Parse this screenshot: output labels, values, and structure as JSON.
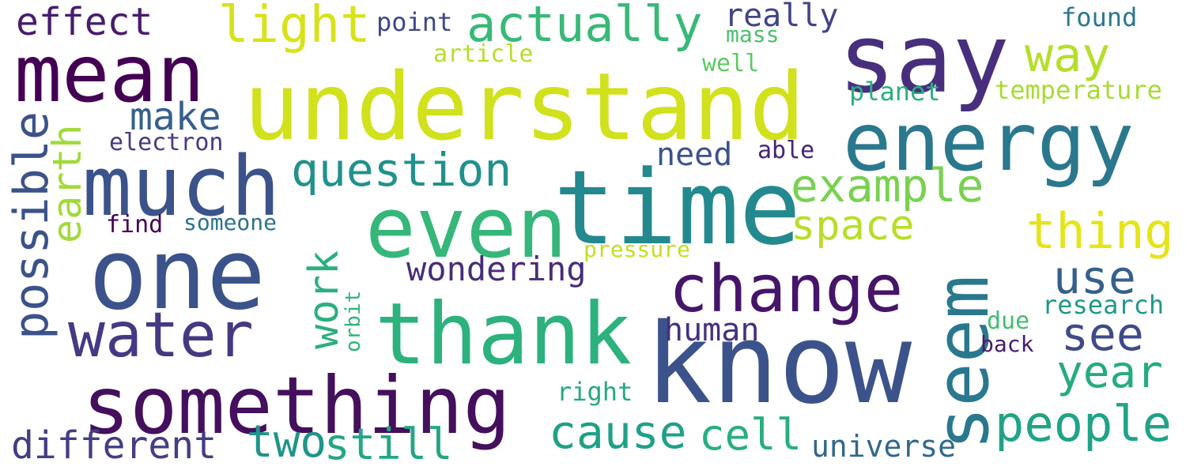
{
  "words": [
    {
      "text": "understand",
      "color": "#d1e11c"
    },
    {
      "text": "say",
      "color": "#472f7d"
    },
    {
      "text": "mean",
      "color": "#440154"
    },
    {
      "text": "energy",
      "color": "#2a788e"
    },
    {
      "text": "much",
      "color": "#3b528b"
    },
    {
      "text": "time",
      "color": "#23898e"
    },
    {
      "text": "even",
      "color": "#35b779"
    },
    {
      "text": "one",
      "color": "#3b528b"
    },
    {
      "text": "thank",
      "color": "#2db27d"
    },
    {
      "text": "know",
      "color": "#3b528b"
    },
    {
      "text": "something",
      "color": "#440f5c"
    },
    {
      "text": "water",
      "color": "#443983"
    },
    {
      "text": "change",
      "color": "#46156a"
    },
    {
      "text": "seem",
      "color": "#2a788e"
    },
    {
      "text": "actually",
      "color": "#38b977"
    },
    {
      "text": "light",
      "color": "#d8e219"
    },
    {
      "text": "effect",
      "color": "#481c6e"
    },
    {
      "text": "question",
      "color": "#21918c"
    },
    {
      "text": "example",
      "color": "#7ad151"
    },
    {
      "text": "way",
      "color": "#b5de2b"
    },
    {
      "text": "thing",
      "color": "#e5e419"
    },
    {
      "text": "space",
      "color": "#b8de29"
    },
    {
      "text": "use",
      "color": "#355f8d"
    },
    {
      "text": "see",
      "color": "#3e4a89"
    },
    {
      "text": "year",
      "color": "#25ab82"
    },
    {
      "text": "people",
      "color": "#20a386"
    },
    {
      "text": "cause",
      "color": "#1fa088"
    },
    {
      "text": "cell",
      "color": "#29af7f"
    },
    {
      "text": "still",
      "color": "#22a785"
    },
    {
      "text": "two",
      "color": "#1f958b"
    },
    {
      "text": "different",
      "color": "#433d84"
    },
    {
      "text": "universe",
      "color": "#31688e"
    },
    {
      "text": "work",
      "color": "#2ab07f"
    },
    {
      "text": "possible",
      "color": "#3b528b"
    },
    {
      "text": "earth",
      "color": "#a0da39"
    },
    {
      "text": "make",
      "color": "#355f8d"
    },
    {
      "text": "really",
      "color": "#414487"
    },
    {
      "text": "point",
      "color": "#3f4788"
    },
    {
      "text": "article",
      "color": "#b5de2b"
    },
    {
      "text": "mass",
      "color": "#4ac16d"
    },
    {
      "text": "well",
      "color": "#5ec962"
    },
    {
      "text": "found",
      "color": "#2a788e"
    },
    {
      "text": "planet",
      "color": "#29af7f"
    },
    {
      "text": "temperature",
      "color": "#a8db34"
    },
    {
      "text": "electron",
      "color": "#443a83"
    },
    {
      "text": "need",
      "color": "#3b528b"
    },
    {
      "text": "able",
      "color": "#482475"
    },
    {
      "text": "find",
      "color": "#440154"
    },
    {
      "text": "someone",
      "color": "#2c728e"
    },
    {
      "text": "pressure",
      "color": "#c2df23"
    },
    {
      "text": "wondering",
      "color": "#472d7b"
    },
    {
      "text": "human",
      "color": "#46307e"
    },
    {
      "text": "orbit",
      "color": "#2fb47c"
    },
    {
      "text": "research",
      "color": "#1f988b"
    },
    {
      "text": "due",
      "color": "#42be71"
    },
    {
      "text": "back",
      "color": "#481a6c"
    },
    {
      "text": "right",
      "color": "#23a983"
    }
  ]
}
